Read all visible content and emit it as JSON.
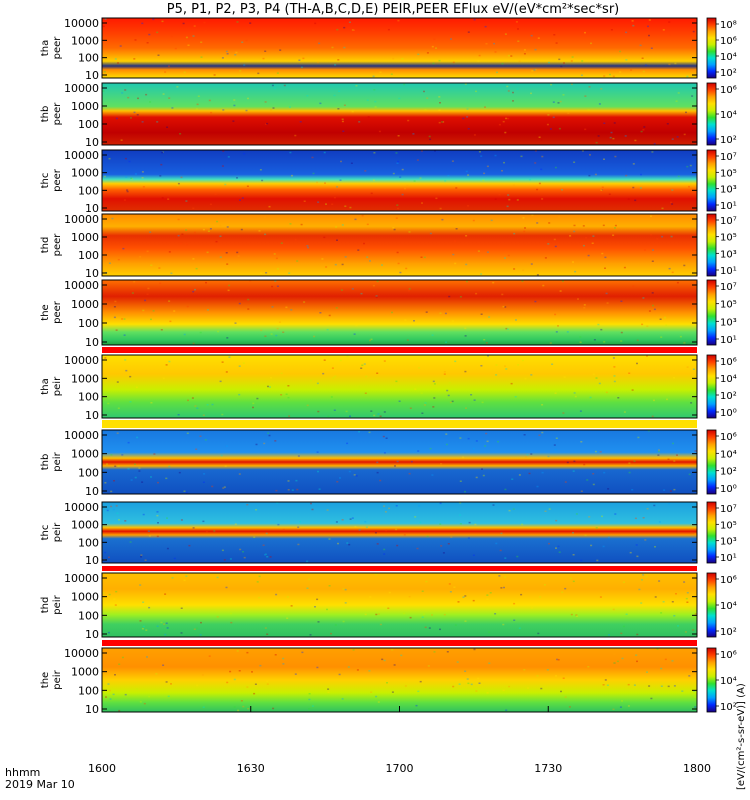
{
  "chart_data": {
    "type": "heatmap",
    "title": "P5, P1, P2, P3, P4 (TH-A,B,C,D,E) PEIR,PEER EFlux eV/(eV*cm²*sec*sr)",
    "time_label": "hhmm",
    "date_label": "2019 Mar 10",
    "x_ticks": [
      "1600",
      "1630",
      "1700",
      "1730",
      "1800"
    ],
    "colorbar_label": "[eV/(cm²-s-sr-eV)] (A)",
    "palette": [
      "#1a0080",
      "#0028ff",
      "#00a0ff",
      "#00e0d0",
      "#30e030",
      "#c8f000",
      "#ffe000",
      "#ffa000",
      "#ff4000",
      "#d00000"
    ],
    "panels": [
      {
        "probe": "tha",
        "species": "peer",
        "yticks": [
          "10000",
          "1000",
          "100",
          "10"
        ],
        "colorbar_ticks": [
          "10⁸",
          "10⁶",
          "10⁴",
          "10²"
        ],
        "bands": [
          [
            0.0,
            "#ff1a00"
          ],
          [
            0.22,
            "#ff3a00"
          ],
          [
            0.5,
            "#ff6a00"
          ],
          [
            0.72,
            "#ffd000"
          ],
          [
            0.8,
            "#203080"
          ],
          [
            0.86,
            "#ff8a00"
          ],
          [
            1.0,
            "#ffe000"
          ]
        ]
      },
      {
        "probe": "thb",
        "species": "peer",
        "yticks": [
          "10000",
          "1000",
          "100",
          "10"
        ],
        "colorbar_ticks": [
          "10⁶",
          "10⁴",
          "10²"
        ],
        "bands": [
          [
            0.0,
            "#20c8b0"
          ],
          [
            0.38,
            "#60e060"
          ],
          [
            0.45,
            "#ffc000"
          ],
          [
            0.55,
            "#e01000"
          ],
          [
            0.8,
            "#c00000"
          ],
          [
            1.0,
            "#d02000"
          ]
        ]
      },
      {
        "probe": "thc",
        "species": "peer",
        "yticks": [
          "10000",
          "1000",
          "100",
          "10"
        ],
        "colorbar_ticks": [
          "10⁷",
          "10⁵",
          "10³",
          "10¹"
        ],
        "bands": [
          [
            0.0,
            "#103cc0"
          ],
          [
            0.4,
            "#1860e0"
          ],
          [
            0.48,
            "#40e0c0"
          ],
          [
            0.55,
            "#ffd000"
          ],
          [
            0.65,
            "#ff6000"
          ],
          [
            0.8,
            "#e01000"
          ],
          [
            1.0,
            "#e03000"
          ]
        ]
      },
      {
        "probe": "thd",
        "species": "peer",
        "yticks": [
          "10000",
          "1000",
          "100",
          "10"
        ],
        "colorbar_ticks": [
          "10⁷",
          "10⁵",
          "10³",
          "10¹"
        ],
        "bands": [
          [
            0.0,
            "#ff8a00"
          ],
          [
            0.2,
            "#ffb000"
          ],
          [
            0.35,
            "#e83000"
          ],
          [
            0.55,
            "#ff5000"
          ],
          [
            0.8,
            "#ffa000"
          ],
          [
            1.0,
            "#ffd000"
          ]
        ]
      },
      {
        "probe": "the",
        "species": "peer",
        "yticks": [
          "10000",
          "1000",
          "100",
          "10"
        ],
        "colorbar_ticks": [
          "10⁷",
          "10⁵",
          "10³",
          "10¹"
        ],
        "bands": [
          [
            0.0,
            "#ff7000"
          ],
          [
            0.25,
            "#e02000"
          ],
          [
            0.5,
            "#ff9000"
          ],
          [
            0.68,
            "#ffe000"
          ],
          [
            0.8,
            "#60e060"
          ],
          [
            0.92,
            "#30c860"
          ],
          [
            1.0,
            "#20a040"
          ]
        ]
      },
      {
        "probe": "tha",
        "species": "peir",
        "yticks": [
          "10000",
          "1000",
          "100",
          "10"
        ],
        "colorbar_ticks": [
          "10⁶",
          "10⁴",
          "10²",
          "10⁰"
        ],
        "bands": [
          [
            0.0,
            "#ffe000"
          ],
          [
            0.3,
            "#ffc800"
          ],
          [
            0.55,
            "#c8f000"
          ],
          [
            0.75,
            "#60e040"
          ],
          [
            1.0,
            "#30c870"
          ]
        ]
      },
      {
        "probe": "thb",
        "species": "peir",
        "yticks": [
          "10000",
          "1000",
          "100",
          "10"
        ],
        "colorbar_ticks": [
          "10⁶",
          "10⁴",
          "10²",
          "10⁰"
        ],
        "bands": [
          [
            0.0,
            "#1878e0"
          ],
          [
            0.35,
            "#2090f0"
          ],
          [
            0.44,
            "#ffc000"
          ],
          [
            0.5,
            "#e01000"
          ],
          [
            0.56,
            "#ffb000"
          ],
          [
            0.62,
            "#1868d0"
          ],
          [
            1.0,
            "#1050c0"
          ]
        ]
      },
      {
        "probe": "thc",
        "species": "peir",
        "yticks": [
          "10000",
          "1000",
          "100",
          "10"
        ],
        "colorbar_ticks": [
          "10⁷",
          "10⁵",
          "10³",
          "10¹"
        ],
        "bands": [
          [
            0.0,
            "#1aa0e0"
          ],
          [
            0.35,
            "#30c0e0"
          ],
          [
            0.42,
            "#ffc000"
          ],
          [
            0.48,
            "#e01000"
          ],
          [
            0.54,
            "#ffa000"
          ],
          [
            0.6,
            "#1a70d0"
          ],
          [
            1.0,
            "#1050c0"
          ]
        ]
      },
      {
        "probe": "thd",
        "species": "peir",
        "yticks": [
          "10000",
          "1000",
          "100",
          "10"
        ],
        "colorbar_ticks": [
          "10⁶",
          "10⁴",
          "10²"
        ],
        "bands": [
          [
            0.0,
            "#ffc000"
          ],
          [
            0.25,
            "#ffb000"
          ],
          [
            0.5,
            "#ffe000"
          ],
          [
            0.65,
            "#a0f020"
          ],
          [
            0.8,
            "#40d060"
          ],
          [
            1.0,
            "#30c060"
          ]
        ]
      },
      {
        "probe": "the",
        "species": "peir",
        "yticks": [
          "10000",
          "1000",
          "100",
          "10"
        ],
        "colorbar_ticks": [
          "10⁶",
          "10⁴",
          "10²"
        ],
        "bands": [
          [
            0.0,
            "#ffa000"
          ],
          [
            0.3,
            "#ff9000"
          ],
          [
            0.5,
            "#ffd000"
          ],
          [
            0.7,
            "#c8f000"
          ],
          [
            0.85,
            "#60e040"
          ],
          [
            1.0,
            "#30c060"
          ]
        ]
      }
    ]
  }
}
